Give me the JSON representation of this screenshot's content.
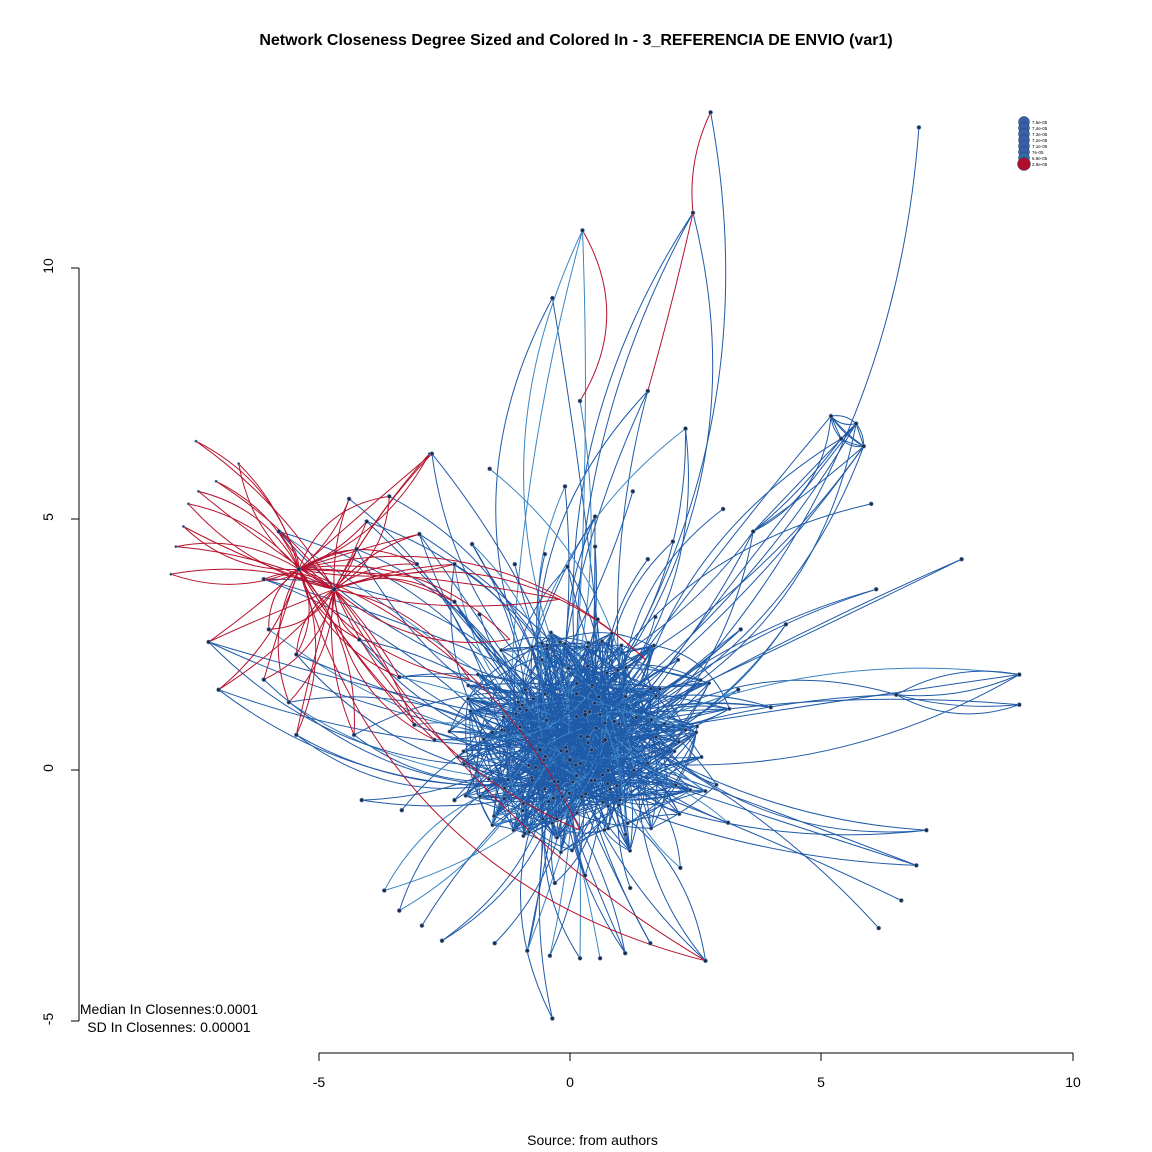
{
  "title": "Network Closeness Degree Sized and Colored In - 3_REFERENCIA DE ENVIO (var1)",
  "source": "Source: from authors",
  "stats": {
    "median": "Median In Closennes:0.0001",
    "sd": "SD In Closennes: 0.00001"
  },
  "axes": {
    "x_ticks": [
      "-5",
      "0",
      "5",
      "10"
    ],
    "y_ticks": [
      "-5",
      "0",
      "5",
      "10"
    ]
  },
  "legend": {
    "entries": [
      {
        "label": "7.5e-05",
        "color": "#3a5ea8"
      },
      {
        "label": "7.4e-05",
        "color": "#3a5ea8"
      },
      {
        "label": "7.3e-05",
        "color": "#3a5ea8"
      },
      {
        "label": "7.2e-05",
        "color": "#3a5ea8"
      },
      {
        "label": "7.1e-05",
        "color": "#3a5ea8"
      },
      {
        "label": "7e-05",
        "color": "#3a5ea8"
      },
      {
        "label": "6.9e-05",
        "color": "#2f6aa8"
      },
      {
        "label": "2.9e-05",
        "color": "#b0102c"
      }
    ]
  },
  "colors": {
    "blue_edge": "#1f5aa8",
    "light_blue_edge": "#3b86c4",
    "red_edge": "#b5122d",
    "node": "#1b2d4a"
  },
  "chart_data": {
    "type": "network",
    "xlim": [
      -5,
      10
    ],
    "ylim": [
      -5,
      10
    ],
    "hubs_red": [
      [
        -5.4,
        4.0
      ],
      [
        -4.7,
        3.6
      ]
    ],
    "hubs_blue": [
      [
        0.0,
        0.2
      ],
      [
        0.7,
        0.6
      ],
      [
        0.3,
        1.1
      ],
      [
        -0.6,
        0.4
      ]
    ]
  }
}
